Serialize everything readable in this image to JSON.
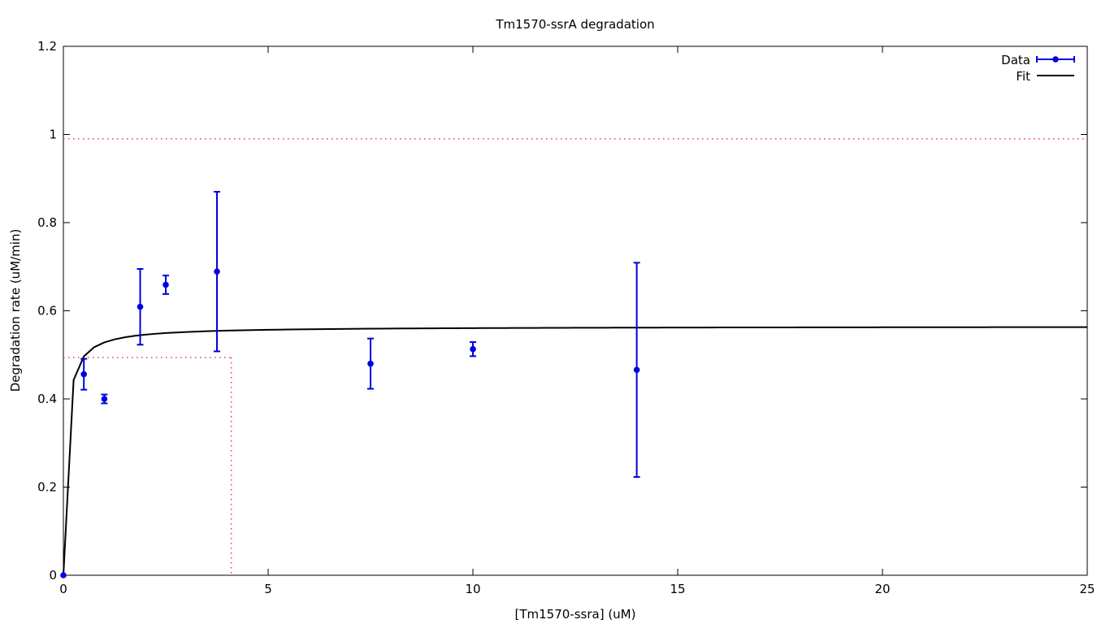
{
  "chart_data": {
    "type": "scatter",
    "title": "Tm1570-ssrA degradation",
    "xlabel": "[Tm1570-ssra] (uM)",
    "ylabel": "Degradation rate (uM/min)",
    "xlim": [
      0,
      25
    ],
    "ylim": [
      0,
      1.2
    ],
    "xticks": [
      0,
      5,
      10,
      15,
      20,
      25
    ],
    "xtick_labels": [
      "0",
      "5",
      "10",
      "15",
      "20",
      "25"
    ],
    "yticks": [
      0,
      0.2,
      0.4,
      0.6,
      0.8,
      1,
      1.2
    ],
    "ytick_labels": [
      "0",
      "0.2",
      "0.4",
      "0.6",
      "0.8",
      "1",
      "1.2"
    ],
    "grid": false,
    "legend_position": "top-right",
    "series": [
      {
        "name": "Data",
        "kind": "errorbar",
        "color": "#0000e0",
        "points": [
          {
            "x": 0,
            "y": 0,
            "err": 0
          },
          {
            "x": 0.5,
            "y": 0.456,
            "err": 0.035
          },
          {
            "x": 1,
            "y": 0.4,
            "err": 0.01
          },
          {
            "x": 1.875,
            "y": 0.609,
            "err": 0.086
          },
          {
            "x": 2.5,
            "y": 0.659,
            "err": 0.021
          },
          {
            "x": 3.75,
            "y": 0.689,
            "err": 0.181
          },
          {
            "x": 7.5,
            "y": 0.48,
            "err": 0.057
          },
          {
            "x": 10,
            "y": 0.513,
            "err": 0.016
          },
          {
            "x": 14,
            "y": 0.466,
            "err": 0.243
          }
        ]
      },
      {
        "name": "Fit",
        "kind": "line",
        "color": "#000000",
        "model": "michaelis-menten",
        "vmax": 0.5645,
        "km": 0.0685
      }
    ],
    "reference_lines": {
      "color": "#e04050",
      "vmax_y": 0.99,
      "half_y": 0.494,
      "km_x": 4.1
    }
  }
}
